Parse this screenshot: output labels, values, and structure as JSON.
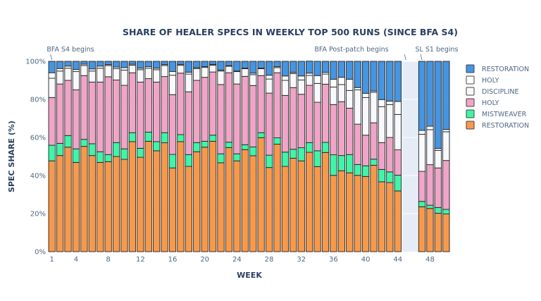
{
  "chart_data": {
    "type": "bar",
    "stacked": true,
    "title": "SHARE OF HEALER SPECS IN WEEKLY TOP 500 RUNS (SINCE BFA S4)",
    "xlabel": "WEEK",
    "ylabel": "SPEC SHARE (%)",
    "ylim": [
      0,
      100
    ],
    "xlim": [
      0.5,
      50.5
    ],
    "yticks": [
      0,
      20,
      40,
      60,
      80,
      100
    ],
    "ytick_labels": [
      "0%",
      "20%",
      "40%",
      "60%",
      "80%",
      "100%"
    ],
    "xticks": [
      1,
      4,
      8,
      12,
      16,
      20,
      24,
      28,
      32,
      36,
      40,
      44,
      48
    ],
    "xtick_labels": [
      "1",
      "4",
      "8",
      "12",
      "16",
      "20",
      "24",
      "28",
      "32",
      "36",
      "40",
      "44",
      "48"
    ],
    "grid": true,
    "legend_position": "right",
    "shaded_region": {
      "x_from": 44.5,
      "x_to": 50.5,
      "color": "#e5ecf6"
    },
    "annotations": [
      {
        "text": "BFA S4 begins",
        "x": 1
      },
      {
        "text": "BFA Post-patch begins",
        "x": 45
      },
      {
        "text": "SL S1 begins",
        "x": 47
      }
    ],
    "x": [
      1,
      2,
      3,
      4,
      5,
      6,
      7,
      8,
      9,
      10,
      11,
      12,
      13,
      14,
      15,
      16,
      17,
      18,
      19,
      20,
      21,
      22,
      23,
      24,
      25,
      26,
      27,
      28,
      29,
      30,
      31,
      32,
      33,
      34,
      35,
      36,
      37,
      38,
      39,
      40,
      41,
      42,
      43,
      44,
      47,
      48,
      49,
      50
    ],
    "series": [
      {
        "name": "RESTORATION",
        "color": "#f8994a",
        "values": [
          47.7,
          50.5,
          54.9,
          46.9,
          55.3,
          50.5,
          46.9,
          47.3,
          50.0,
          48.5,
          57.8,
          49.6,
          58.0,
          53.0,
          57.2,
          44.0,
          57.8,
          44.8,
          52.5,
          54.9,
          58.0,
          46.7,
          54.7,
          47.7,
          53.6,
          50.4,
          59.9,
          44.2,
          56.5,
          44.8,
          49.1,
          47.7,
          52.2,
          44.7,
          52.1,
          40.1,
          42.5,
          41.4,
          40.1,
          39.5,
          45.4,
          36.7,
          36.3,
          31.9,
          23.6,
          22.7,
          20.2,
          19.8
        ]
      },
      {
        "name": "MISTWEAVER",
        "color": "#40f5a8",
        "values": [
          8.2,
          6.4,
          6.1,
          7.1,
          3.7,
          6.2,
          5.6,
          3.7,
          7.3,
          5.5,
          4.7,
          4.7,
          4.8,
          4.8,
          5.3,
          7.1,
          3.7,
          6.2,
          4.8,
          3.1,
          3.2,
          4.7,
          2.8,
          3.7,
          2.6,
          4.6,
          2.6,
          6.5,
          3.3,
          7.5,
          4.7,
          6.9,
          5.1,
          8.3,
          5.3,
          10.8,
          8.0,
          9.6,
          5.7,
          5.6,
          3.2,
          6.5,
          5.6,
          8.3,
          2.8,
          1.7,
          3.0,
          2.4
        ]
      },
      {
        "name": "HOLY",
        "color": "#f0a5c8",
        "values": [
          25.1,
          31.2,
          29.0,
          31.0,
          33.5,
          32.4,
          36.6,
          40.9,
          32.9,
          33.4,
          31.5,
          34.8,
          28.1,
          31.3,
          29.5,
          31.4,
          32.3,
          33.0,
          32.7,
          33.6,
          33.2,
          36.4,
          36.5,
          36.7,
          35.9,
          32.3,
          30.0,
          32.6,
          34.2,
          29.8,
          32.4,
          28.1,
          30.1,
          25.5,
          30.6,
          26.4,
          28.3,
          24.4,
          21.2,
          16.1,
          19.1,
          14.1,
          18.1,
          13.3,
          15.8,
          21.3,
          20.8,
          25.7
        ]
      },
      {
        "name": "DISCIPLINE",
        "color": "#f8f9fc",
        "values": [
          10.1,
          6.8,
          6.4,
          9.6,
          5.3,
          5.8,
          7.3,
          5.9,
          6.0,
          8.0,
          4.0,
          6.5,
          5.5,
          6.5,
          5.8,
          10.2,
          4.1,
          9.3,
          6.2,
          5.2,
          3.6,
          7.1,
          3.4,
          6.5,
          4.0,
          5.7,
          3.6,
          7.4,
          2.7,
          7.9,
          7.4,
          7.5,
          5.2,
          9.9,
          5.3,
          9.2,
          9.0,
          9.3,
          18.0,
          19.8,
          16.0,
          18.9,
          17.3,
          18.6,
          19.5,
          18.4,
          9.2,
          15.1
        ]
      },
      {
        "name": "HOLY",
        "color": "#ffffff",
        "values": [
          2.9,
          1.3,
          1.1,
          1.1,
          0.7,
          1.1,
          1.1,
          0.5,
          0.8,
          1.3,
          0.5,
          0.8,
          0.8,
          0.8,
          0.5,
          1.9,
          0.5,
          1.0,
          0.5,
          0.4,
          0.4,
          0.5,
          0.3,
          0.3,
          0.3,
          0.8,
          0.3,
          2.0,
          0.5,
          2.3,
          0.6,
          2.1,
          1.2,
          4.1,
          0.9,
          4.1,
          3.8,
          5.9,
          1.2,
          2.2,
          0.7,
          3.7,
          1.8,
          6.8,
          2.0,
          1.8,
          1.0,
          1.2
        ]
      },
      {
        "name": "RESTORATION",
        "color": "#4495e2",
        "values": [
          6.0,
          3.8,
          2.5,
          4.3,
          1.5,
          4.0,
          2.5,
          1.7,
          3.0,
          3.3,
          1.5,
          3.6,
          2.8,
          3.6,
          1.7,
          5.4,
          1.6,
          5.7,
          3.3,
          2.8,
          1.6,
          4.6,
          2.3,
          5.1,
          3.6,
          6.2,
          3.6,
          7.3,
          2.8,
          7.7,
          5.8,
          7.7,
          6.3,
          7.5,
          5.8,
          9.4,
          8.4,
          9.4,
          13.8,
          16.8,
          15.6,
          20.1,
          20.9,
          21.1,
          36.3,
          34.1,
          45.8,
          35.8
        ]
      }
    ]
  },
  "legend": {
    "items": [
      {
        "label": "RESTORATION",
        "color": "#4495e2"
      },
      {
        "label": "HOLY",
        "color": "#ffffff"
      },
      {
        "label": "DISCIPLINE",
        "color": "#f8f9fc"
      },
      {
        "label": "HOLY",
        "color": "#f0a5c8"
      },
      {
        "label": "MISTWEAVER",
        "color": "#40f5a8"
      },
      {
        "label": "RESTORATION",
        "color": "#f8994a"
      }
    ]
  }
}
